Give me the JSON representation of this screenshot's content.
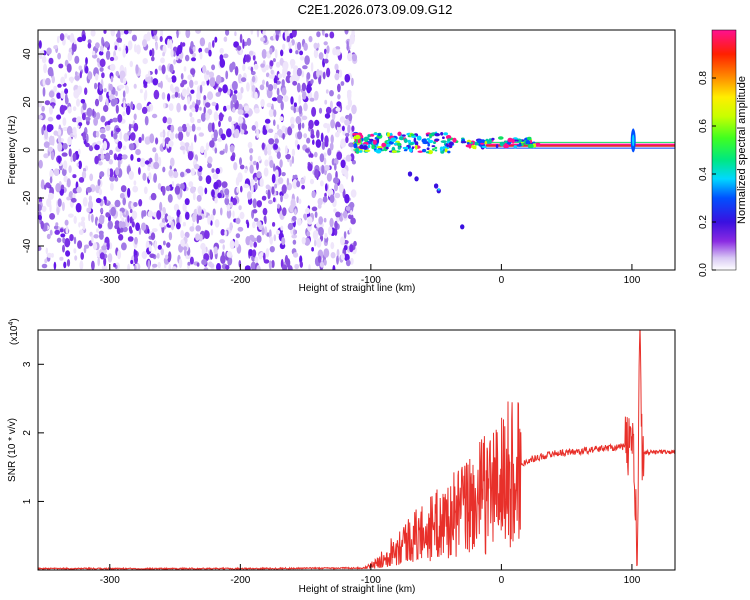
{
  "chart_data": [
    {
      "type": "heatmap",
      "title": "C2E1.2026.073.09.09.G12",
      "xlabel": "Height of straight line (km)",
      "ylabel": "Frequency (Hz)",
      "xlim": [
        -355,
        133
      ],
      "ylim": [
        -50,
        50
      ],
      "xticks": [
        -300,
        -200,
        -100,
        0,
        100
      ],
      "yticks": [
        -40,
        -20,
        0,
        20,
        40
      ],
      "colorbar": {
        "label": "Normalized spectral amplitude",
        "range": [
          0,
          1
        ],
        "ticks": [
          "0.0",
          "0.2",
          "0.4",
          "0.6",
          "0.8"
        ]
      },
      "features": {
        "noise_region_x": [
          -355,
          -112
        ],
        "signal_line_freq_hz": 2,
        "signal_line_x": [
          -112,
          133
        ],
        "spike_x": 101
      }
    },
    {
      "type": "line",
      "xlabel": "Height of straight line (km)",
      "ylabel": "SNR (10 * v/v)",
      "yscale_note": "(x10",
      "yscale_exp": "4",
      "xlim": [
        -355,
        133
      ],
      "ylim": [
        0,
        3.5
      ],
      "xticks": [
        -300,
        -200,
        -100,
        0,
        100
      ],
      "yticks": [
        1,
        2,
        3
      ],
      "series": [
        {
          "color": "#e8302a",
          "x": [
            -355,
            -200,
            -105,
            -95,
            -80,
            -60,
            -40,
            -20,
            0,
            20,
            40,
            60,
            80,
            95,
            101,
            104,
            106,
            108,
            112,
            133
          ],
          "values": [
            0.02,
            0.02,
            0.03,
            0.1,
            0.35,
            0.55,
            0.75,
            1.0,
            1.3,
            1.6,
            1.7,
            1.73,
            1.78,
            1.8,
            1.9,
            0.1,
            3.4,
            1.7,
            1.72,
            1.72
          ]
        }
      ]
    }
  ]
}
